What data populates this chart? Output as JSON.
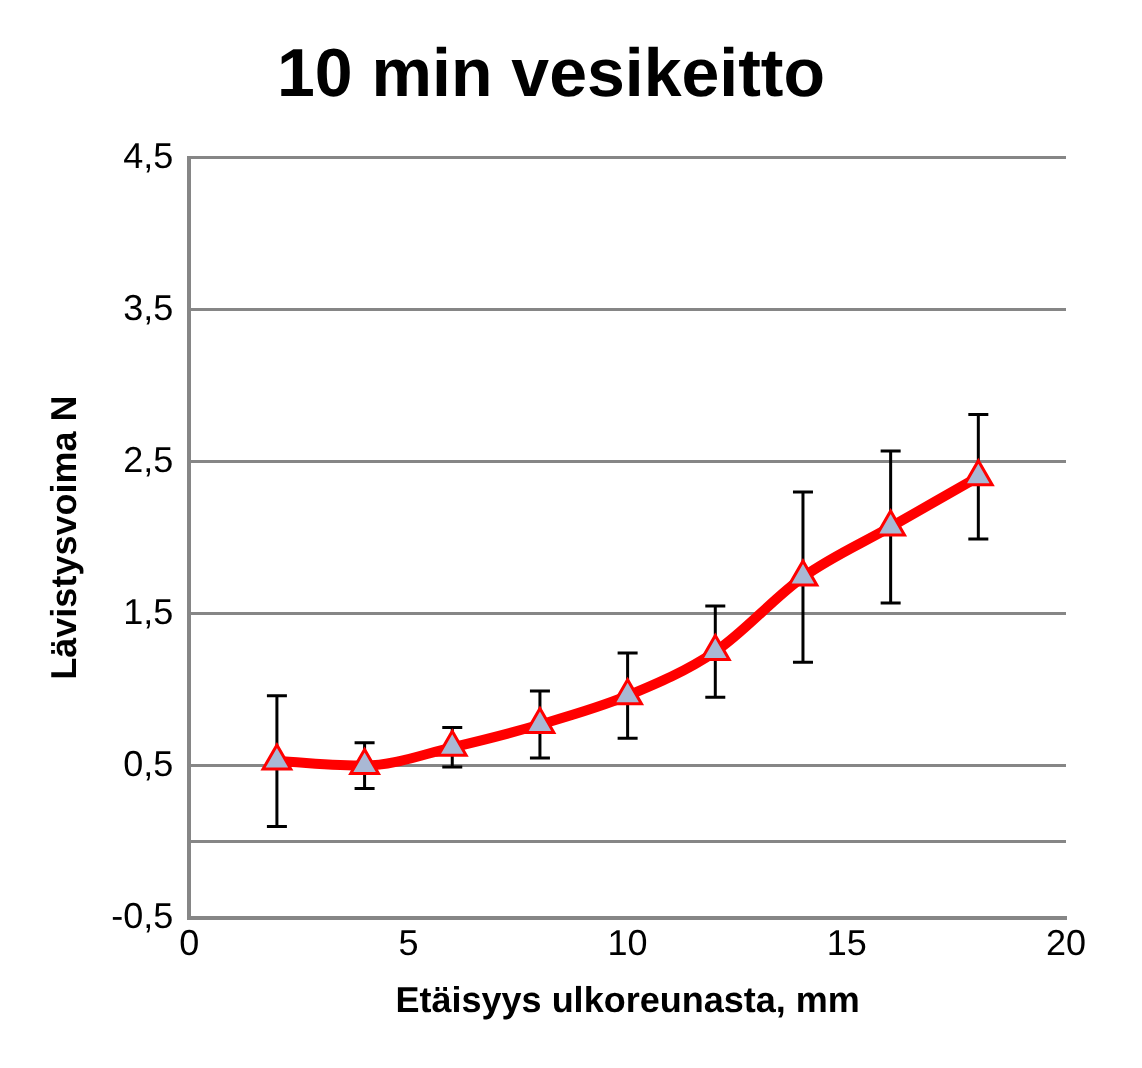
{
  "chart_data": {
    "type": "line",
    "title": "10 min vesikeitto",
    "xlabel": "Etäisyys ulkoreunasta, mm",
    "ylabel": "Lävistysvoima N",
    "x": [
      2,
      4,
      6,
      8,
      10,
      12,
      14,
      16,
      18
    ],
    "series": [
      {
        "color": "#ff0000",
        "values": [
          0.53,
          0.5,
          0.62,
          0.77,
          0.96,
          1.25,
          1.74,
          2.07,
          2.4
        ],
        "errors": [
          0.43,
          0.15,
          0.13,
          0.22,
          0.28,
          0.3,
          0.56,
          0.5,
          0.41
        ]
      }
    ],
    "xlim": [
      0,
      20
    ],
    "xticks": [
      0,
      5,
      10,
      15,
      20
    ],
    "ylim": [
      -0.5,
      4.5
    ],
    "yticks": [
      {
        "value": -0.5,
        "label": "-0,5"
      },
      {
        "value": 0.5,
        "label": "0,5"
      },
      {
        "value": 1.5,
        "label": "1,5"
      },
      {
        "value": 2.5,
        "label": "2,5"
      },
      {
        "value": 3.5,
        "label": "3,5"
      },
      {
        "value": 4.5,
        "label": "4,5"
      }
    ],
    "ref_lines": [
      {
        "axis": "y",
        "value": 0,
        "color": "#868686"
      }
    ],
    "grid": "y",
    "legend": false,
    "marker": "triangle",
    "line_style": "solid"
  }
}
